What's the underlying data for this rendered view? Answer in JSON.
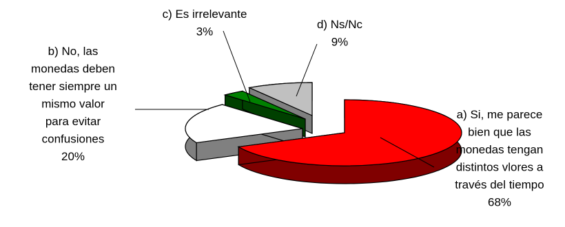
{
  "chart_data": {
    "type": "pie",
    "style": "3d-exploded",
    "title": "",
    "categories": [
      "a) Si, me parece bien que las monedas tengan distintos vlores a través del tiempo",
      "b) No, las monedas deben tener siempre un mismo valor para evitar confusiones",
      "c) Es irrelevante",
      "d) Ns/Nc"
    ],
    "values": [
      68,
      20,
      3,
      9
    ],
    "units": "%",
    "legend": "none",
    "slices": [
      {
        "label_lines": [
          "a) Si, me parece",
          "bien que las",
          "monedas tengan",
          "distintos vlores a",
          "través del tiempo",
          "68%"
        ],
        "value": 68,
        "color": "#ff0000",
        "side_color": "#800000"
      },
      {
        "label_lines": [
          "b) No, las",
          "monedas deben",
          "tener siempre un",
          "mismo valor",
          "para evitar",
          "confusiones",
          "20%"
        ],
        "value": 20,
        "color": "#ffffff",
        "side_color": "#808080"
      },
      {
        "label_lines": [
          "c) Es irrelevante",
          "3%"
        ],
        "value": 3,
        "color": "#008000",
        "side_color": "#004000"
      },
      {
        "label_lines": [
          "d) Ns/Nc",
          "9%"
        ],
        "value": 9,
        "color": "#c0c0c0",
        "side_color": "#808080"
      }
    ]
  }
}
